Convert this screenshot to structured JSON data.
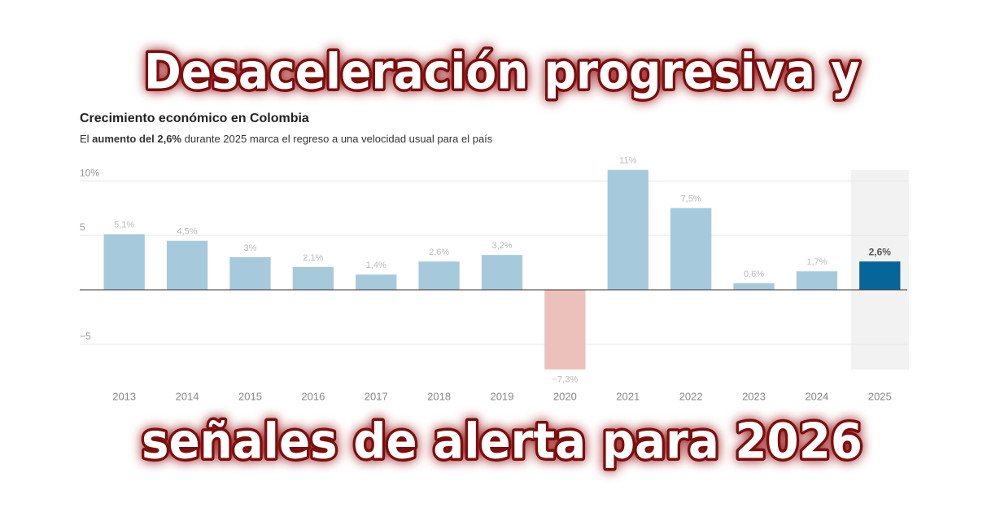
{
  "headline": [
    "Desaceleración progresiva y",
    "señales de alerta para 2026"
  ],
  "chart_data": {
    "type": "bar",
    "title": "Crecimiento económico en Colombia",
    "subtitle": [
      "El ",
      "aumento del 2,6%",
      " durante 2025 marca el regreso a una velocidad usual para el país"
    ],
    "categories": [
      "2013",
      "2014",
      "2015",
      "2016",
      "2017",
      "2018",
      "2019",
      "2020",
      "2021",
      "2022",
      "2023",
      "2024",
      "2025"
    ],
    "values": [
      5.1,
      4.5,
      3,
      2.1,
      1.4,
      2.6,
      3.2,
      -7.3,
      11,
      7.5,
      0.6,
      1.7,
      2.6
    ],
    "value_labels": [
      "5,1%",
      "4,5%",
      "3%",
      "2,1%",
      "1,4%",
      "2,6%",
      "3,2%",
      "−7,3%",
      "11%",
      "7,5%",
      "0,6%",
      "1,7%",
      "2,6%"
    ],
    "colors": [
      "#a7c9dc",
      "#a7c9dc",
      "#a7c9dc",
      "#a7c9dc",
      "#a7c9dc",
      "#a7c9dc",
      "#a7c9dc",
      "#ecc1bb",
      "#a7c9dc",
      "#a7c9dc",
      "#a7c9dc",
      "#a7c9dc",
      "#08659a"
    ],
    "highlight_category": "2025",
    "ylim": [
      -7.5,
      11.5
    ],
    "yticks": [
      {
        "value": 10,
        "label": "10%"
      },
      5,
      {
        "value": -5,
        "label": "−5"
      }
    ],
    "grid": true
  }
}
